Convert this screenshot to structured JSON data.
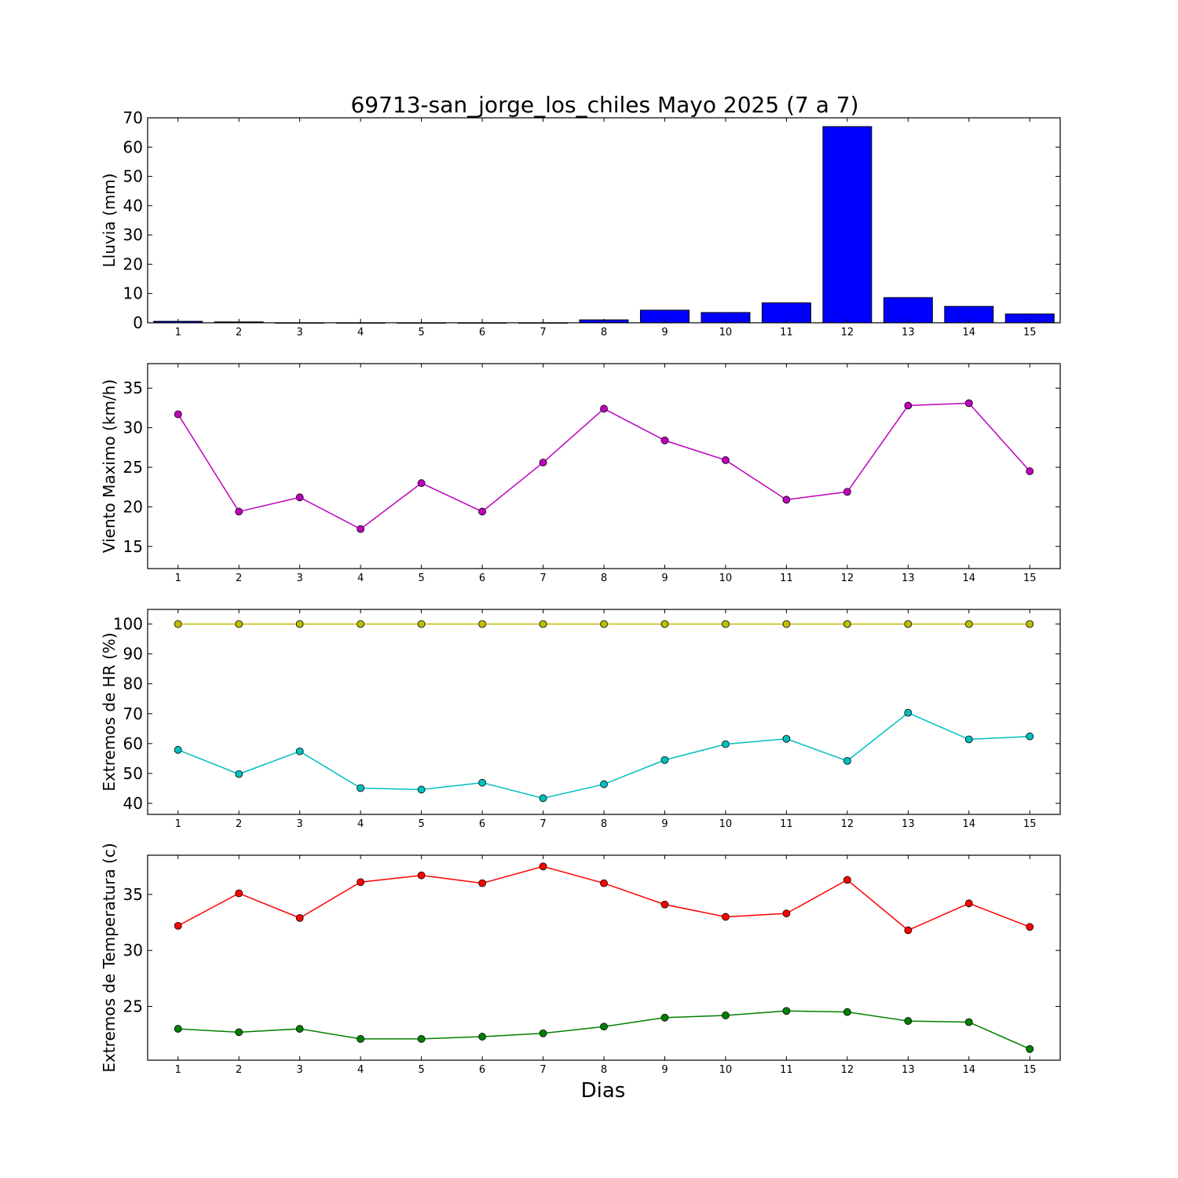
{
  "title": "69713-san_jorge_los_chiles Mayo 2025  (7 a 7)",
  "xlabel": "Dias",
  "chart_data": [
    {
      "type": "bar",
      "ylabel": "Lluvia (mm)",
      "x": [
        1,
        2,
        3,
        4,
        5,
        6,
        7,
        8,
        9,
        10,
        11,
        12,
        13,
        14,
        15
      ],
      "xticks": [
        1,
        2,
        3,
        4,
        5,
        6,
        7,
        8,
        9,
        10,
        11,
        12,
        13,
        14,
        15
      ],
      "yticks": [
        0,
        10,
        20,
        30,
        40,
        50,
        60,
        70
      ],
      "ylim": [
        0,
        70
      ],
      "xlim": [
        0.5,
        15.5
      ],
      "grid": false,
      "series": [
        {
          "values": [
            0.5,
            0.3,
            0.0,
            0.0,
            0.0,
            0.0,
            0.0,
            1.0,
            4.3,
            3.5,
            6.8,
            67.0,
            8.6,
            5.6,
            3.0
          ],
          "color": "#0000ff"
        }
      ]
    },
    {
      "type": "line",
      "ylabel": "Viento Maximo (km/h)",
      "x": [
        1,
        2,
        3,
        4,
        5,
        6,
        7,
        8,
        9,
        10,
        11,
        12,
        13,
        14,
        15
      ],
      "xticks": [
        1,
        2,
        3,
        4,
        5,
        6,
        7,
        8,
        9,
        10,
        11,
        12,
        13,
        14,
        15
      ],
      "yticks": [
        15,
        20,
        25,
        30,
        35
      ],
      "ylim": [
        12.2,
        38.1
      ],
      "xlim": [
        0.5,
        15.5
      ],
      "grid": false,
      "series": [
        {
          "values": [
            31.7,
            19.4,
            21.2,
            17.2,
            23.0,
            19.4,
            25.6,
            32.4,
            28.4,
            25.9,
            20.9,
            21.9,
            32.8,
            33.1,
            24.5
          ],
          "color": "#bf00bf"
        }
      ]
    },
    {
      "type": "line",
      "ylabel": "Extremos de HR (%)",
      "x": [
        1,
        2,
        3,
        4,
        5,
        6,
        7,
        8,
        9,
        10,
        11,
        12,
        13,
        14,
        15
      ],
      "xticks": [
        1,
        2,
        3,
        4,
        5,
        6,
        7,
        8,
        9,
        10,
        11,
        12,
        13,
        14,
        15
      ],
      "yticks": [
        40,
        50,
        60,
        70,
        80,
        90,
        100
      ],
      "ylim": [
        36.3,
        104.9
      ],
      "xlim": [
        0.5,
        15.5
      ],
      "grid": false,
      "series": [
        {
          "values": [
            100,
            100,
            100,
            100,
            100,
            100,
            100,
            100,
            100,
            100,
            100,
            100,
            100,
            100,
            100
          ],
          "color": "#bfbf00"
        },
        {
          "values": [
            57.9,
            49.8,
            57.4,
            45.1,
            44.6,
            46.9,
            41.7,
            46.4,
            54.5,
            59.8,
            61.6,
            54.2,
            70.3,
            61.4,
            62.4
          ],
          "color": "#00bfbf"
        }
      ]
    },
    {
      "type": "line",
      "ylabel": "Extremos de Temperatura (c)",
      "x": [
        1,
        2,
        3,
        4,
        5,
        6,
        7,
        8,
        9,
        10,
        11,
        12,
        13,
        14,
        15
      ],
      "xticks": [
        1,
        2,
        3,
        4,
        5,
        6,
        7,
        8,
        9,
        10,
        11,
        12,
        13,
        14,
        15
      ],
      "yticks": [
        25,
        30,
        35
      ],
      "ylim": [
        20.2,
        38.5
      ],
      "xlim": [
        0.5,
        15.5
      ],
      "grid": false,
      "series": [
        {
          "values": [
            32.2,
            35.1,
            32.9,
            36.1,
            36.7,
            36.0,
            37.5,
            36.0,
            34.1,
            33.0,
            33.3,
            36.3,
            31.8,
            34.2,
            32.1
          ],
          "color": "#ff0000"
        },
        {
          "values": [
            23.0,
            22.7,
            23.0,
            22.1,
            22.1,
            22.3,
            22.6,
            23.2,
            24.0,
            24.2,
            24.6,
            24.5,
            23.7,
            23.6,
            21.2
          ],
          "color": "#008000"
        }
      ]
    }
  ]
}
